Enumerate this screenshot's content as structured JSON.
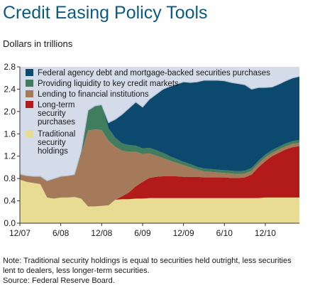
{
  "title": "Credit Easing Policy Tools",
  "subtitle": "Dollars in trillions",
  "note": "Note: Traditional security holdings is equal to securities held outright, less securities lent to dealers, less longer-term securities.",
  "note_line1": "Note: Traditional security holdings is equal to securities held outright, less securities",
  "note_line2": "lent to dealers, less longer-term securities.",
  "source": "Source: Federal Reserve Board.",
  "colors": {
    "traditional": "#e8dc93",
    "long_term": "#b31b1b",
    "lending": "#a47a5a",
    "liquidity": "#3f7d5e",
    "federal_agency": "#0b4a6e",
    "background": "#d4dce9",
    "total_line": "#b7c2d6"
  },
  "chart_data": {
    "type": "area",
    "stacked": true,
    "x": [
      "12/07",
      "1/08",
      "2/08",
      "3/08",
      "4/08",
      "5/08",
      "6/08",
      "7/08",
      "8/08",
      "9/08",
      "10/08",
      "11/08",
      "12/08",
      "1/09",
      "2/09",
      "3/09",
      "4/09",
      "5/09",
      "6/09",
      "7/09",
      "8/09",
      "9/09",
      "10/09",
      "11/09",
      "12/09",
      "1/10",
      "2/10",
      "3/10",
      "4/10",
      "5/10",
      "6/10",
      "7/10",
      "8/10",
      "9/10",
      "10/10",
      "11/10",
      "12/10",
      "1/11",
      "2/11",
      "3/11",
      "4/11",
      "5/11"
    ],
    "xticks": [
      "12/07",
      "6/08",
      "12/08",
      "6/09",
      "12/09",
      "6/10",
      "12/10"
    ],
    "ylim": [
      0.0,
      2.8
    ],
    "yticks": [
      "0.0",
      "0.4",
      "0.8",
      "1.2",
      "1.6",
      "2.0",
      "2.4",
      "2.8"
    ],
    "xlabel": "",
    "ylabel": "",
    "grid": false,
    "legend_position": "top-left",
    "series": [
      {
        "name": "Traditional security holdings",
        "values": [
          0.78,
          0.74,
          0.72,
          0.7,
          0.46,
          0.44,
          0.46,
          0.46,
          0.47,
          0.44,
          0.3,
          0.3,
          0.31,
          0.32,
          0.42,
          0.43,
          0.43,
          0.44,
          0.44,
          0.45,
          0.45,
          0.45,
          0.45,
          0.45,
          0.45,
          0.45,
          0.45,
          0.45,
          0.45,
          0.45,
          0.45,
          0.45,
          0.45,
          0.45,
          0.45,
          0.45,
          0.46,
          0.46,
          0.46,
          0.46,
          0.46,
          0.46
        ]
      },
      {
        "name": "Long-term security purchases",
        "values": [
          0.0,
          0.0,
          0.0,
          0.0,
          0.0,
          0.0,
          0.0,
          0.0,
          0.0,
          0.0,
          0.0,
          0.0,
          0.0,
          0.0,
          0.0,
          0.05,
          0.12,
          0.22,
          0.3,
          0.36,
          0.38,
          0.39,
          0.39,
          0.39,
          0.38,
          0.38,
          0.38,
          0.37,
          0.37,
          0.37,
          0.37,
          0.36,
          0.36,
          0.37,
          0.42,
          0.55,
          0.65,
          0.74,
          0.8,
          0.86,
          0.9,
          0.92
        ]
      },
      {
        "name": "Lending to financial institutions",
        "values": [
          0.1,
          0.11,
          0.12,
          0.14,
          0.3,
          0.36,
          0.38,
          0.39,
          0.4,
          0.8,
          1.36,
          1.38,
          1.36,
          1.16,
          0.95,
          0.82,
          0.73,
          0.62,
          0.5,
          0.44,
          0.38,
          0.33,
          0.28,
          0.24,
          0.21,
          0.17,
          0.13,
          0.11,
          0.1,
          0.09,
          0.08,
          0.08,
          0.07,
          0.07,
          0.07,
          0.07,
          0.07,
          0.06,
          0.06,
          0.06,
          0.06,
          0.06
        ]
      },
      {
        "name": "Providing liquidity to key credit markets",
        "values": [
          0.0,
          0.0,
          0.0,
          0.0,
          0.0,
          0.0,
          0.0,
          0.0,
          0.0,
          0.05,
          0.36,
          0.42,
          0.45,
          0.22,
          0.16,
          0.13,
          0.12,
          0.11,
          0.1,
          0.1,
          0.1,
          0.09,
          0.08,
          0.07,
          0.06,
          0.06,
          0.05,
          0.05,
          0.05,
          0.05,
          0.05,
          0.05,
          0.05,
          0.05,
          0.05,
          0.05,
          0.05,
          0.05,
          0.05,
          0.05,
          0.05,
          0.05
        ]
      },
      {
        "name": "Federal agency debt and mortgage-backed securities purchases",
        "values": [
          0.0,
          0.0,
          0.0,
          0.0,
          0.0,
          0.0,
          0.0,
          0.0,
          0.0,
          0.0,
          0.0,
          0.0,
          0.0,
          0.1,
          0.33,
          0.52,
          0.66,
          0.78,
          0.74,
          0.87,
          1.0,
          1.14,
          1.25,
          1.34,
          1.43,
          1.46,
          1.52,
          1.58,
          1.59,
          1.6,
          1.6,
          1.58,
          1.57,
          1.54,
          1.41,
          1.31,
          1.2,
          1.13,
          1.12,
          1.12,
          1.13,
          1.14
        ]
      }
    ],
    "legend": [
      {
        "label": "Federal agency debt and mortgage-backed securities purchases",
        "color": "#0b4a6e"
      },
      {
        "label": "Providing liquidity to key credit markets",
        "color": "#3f7d5e"
      },
      {
        "label": "Lending to financial institutions",
        "color": "#a47a5a"
      },
      {
        "label": "Long-term security purchases",
        "color": "#b31b1b"
      },
      {
        "label": "Traditional security holdings",
        "color": "#e8dc93"
      }
    ]
  }
}
